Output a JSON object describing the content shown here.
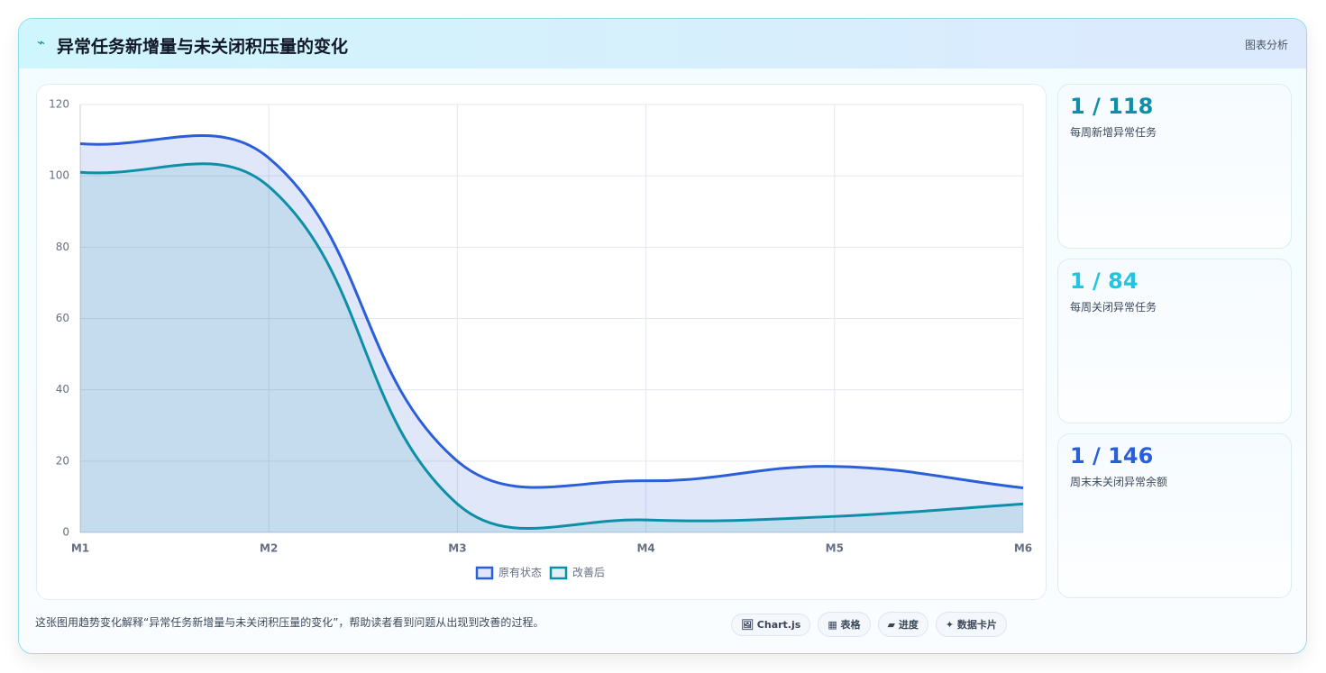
{
  "header": {
    "icon": "⌁",
    "title": "异常任务新增量与未关闭积压量的变化",
    "tag": "图表分析"
  },
  "chart_data": {
    "type": "line",
    "area": true,
    "categories": [
      "M1",
      "M2",
      "M3",
      "M4",
      "M5",
      "M6"
    ],
    "series": [
      {
        "name": "原有状态",
        "color": "#2b5fd9",
        "values": [
          109,
          105,
          20,
          14.5,
          18.5,
          12.5
        ]
      },
      {
        "name": "改善后",
        "color": "#0e8fa8",
        "values": [
          101,
          97,
          8,
          3.5,
          4.5,
          8
        ]
      }
    ],
    "ylim": [
      0,
      120
    ],
    "yticks": [
      0,
      20,
      40,
      60,
      80,
      100,
      120
    ],
    "grid": true,
    "legend": "bottom"
  },
  "cards": [
    {
      "value": "1 / 118",
      "label": "每周新增异常任务",
      "color": "#0e8fa8"
    },
    {
      "value": "1 / 84",
      "label": "每周关闭异常任务",
      "color": "#22c5e0"
    },
    {
      "value": "1 / 146",
      "label": "周末未关闭异常余额",
      "color": "#2b5fd9"
    }
  ],
  "footer": {
    "note": "这张图用趋势变化解释“异常任务新增量与未关闭积压量的变化”，帮助读者看到问题从出现到改善的过程。",
    "chips": [
      "🖼 Chart.js",
      "▦ 表格",
      "▰ 进度",
      "✦ 数据卡片"
    ]
  }
}
